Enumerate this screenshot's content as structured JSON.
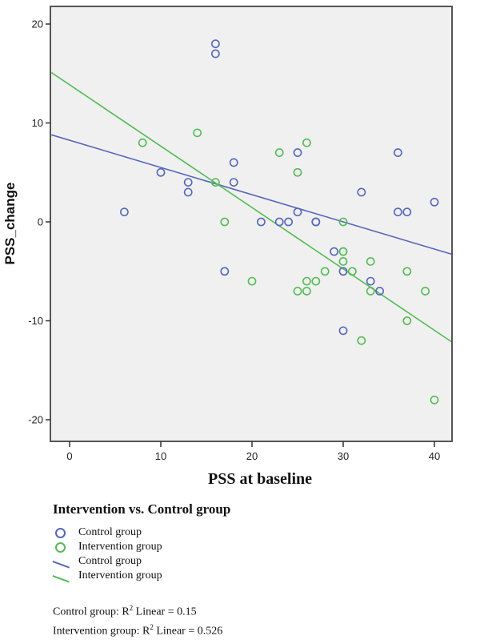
{
  "chart_data": {
    "type": "scatter",
    "title": "",
    "xlabel": "PSS at baseline",
    "ylabel": "PSS_change",
    "xlim": [
      -2,
      42
    ],
    "ylim": [
      -22,
      22
    ],
    "xticks": [
      0,
      10,
      20,
      30,
      40
    ],
    "yticks": [
      -20,
      -10,
      0,
      10,
      20
    ],
    "grid": false,
    "background": "#f0f0f0",
    "series": [
      {
        "name": "Control group",
        "kind": "points",
        "color": "#5566bb",
        "points": [
          [
            6,
            1
          ],
          [
            10,
            5
          ],
          [
            13,
            4
          ],
          [
            13,
            3
          ],
          [
            16,
            18
          ],
          [
            16,
            17
          ],
          [
            17,
            -5
          ],
          [
            18,
            6
          ],
          [
            18,
            4
          ],
          [
            21,
            0
          ],
          [
            23,
            0
          ],
          [
            24,
            0
          ],
          [
            25,
            7
          ],
          [
            25,
            1
          ],
          [
            27,
            0
          ],
          [
            27,
            0
          ],
          [
            29,
            -3
          ],
          [
            30,
            -5
          ],
          [
            30,
            -11
          ],
          [
            32,
            3
          ],
          [
            33,
            -6
          ],
          [
            34,
            -7
          ],
          [
            36,
            7
          ],
          [
            36,
            1
          ],
          [
            37,
            1
          ],
          [
            40,
            2
          ]
        ]
      },
      {
        "name": "Intervention group",
        "kind": "points",
        "color": "#55bb55",
        "points": [
          [
            8,
            8
          ],
          [
            14,
            9
          ],
          [
            16,
            4
          ],
          [
            17,
            0
          ],
          [
            20,
            -6
          ],
          [
            23,
            7
          ],
          [
            25,
            5
          ],
          [
            25,
            -7
          ],
          [
            26,
            8
          ],
          [
            26,
            -6
          ],
          [
            26,
            -7
          ],
          [
            27,
            -6
          ],
          [
            28,
            -5
          ],
          [
            30,
            0
          ],
          [
            30,
            -3
          ],
          [
            30,
            -3
          ],
          [
            30,
            -4
          ],
          [
            31,
            -5
          ],
          [
            32,
            -12
          ],
          [
            33,
            -4
          ],
          [
            33,
            -7
          ],
          [
            37,
            -5
          ],
          [
            37,
            -10
          ],
          [
            39,
            -7
          ],
          [
            40,
            -18
          ]
        ]
      },
      {
        "name": "Control group",
        "kind": "fit-line",
        "color": "#5566bb",
        "line": [
          [
            -2,
            8.8
          ],
          [
            42,
            -3.3
          ]
        ],
        "r2": 0.15
      },
      {
        "name": "Intervention group",
        "kind": "fit-line",
        "color": "#55bb55",
        "line": [
          [
            -2,
            15.1
          ],
          [
            42,
            -12.2
          ]
        ],
        "r2": 0.526
      }
    ],
    "legend": {
      "title": "Intervention vs. Control group",
      "placement": "bottom-left",
      "entries": [
        {
          "label": "Control group",
          "symbol": "circle",
          "color": "#5566bb"
        },
        {
          "label": "Intervention group",
          "symbol": "circle",
          "color": "#55bb55"
        },
        {
          "label": "Control group",
          "symbol": "line",
          "color": "#5566bb"
        },
        {
          "label": "Intervention group",
          "symbol": "line",
          "color": "#55bb55"
        }
      ]
    },
    "annotations": [
      {
        "group": "Control group: R",
        "sup": "2",
        "rest": " Linear = 0.15"
      },
      {
        "group": "Intervention group: R",
        "sup": "2",
        "rest": " Linear = 0.526"
      }
    ]
  }
}
